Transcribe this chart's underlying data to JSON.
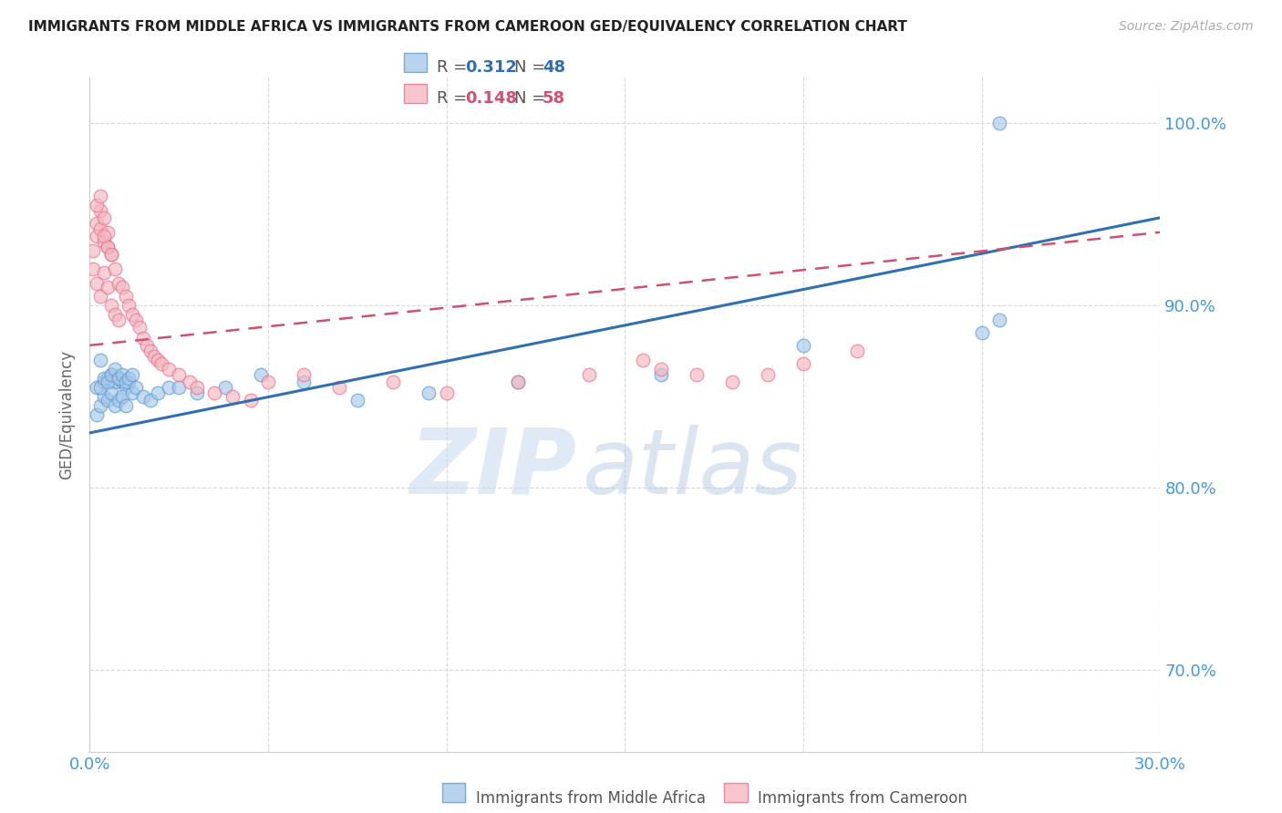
{
  "title": "IMMIGRANTS FROM MIDDLE AFRICA VS IMMIGRANTS FROM CAMEROON GED/EQUIVALENCY CORRELATION CHART",
  "source": "Source: ZipAtlas.com",
  "ylabel": "GED/Equivalency",
  "xlim": [
    0.0,
    0.3
  ],
  "ylim": [
    0.655,
    1.025
  ],
  "yticks": [
    0.7,
    0.8,
    0.9,
    1.0
  ],
  "ytick_labels": [
    "70.0%",
    "80.0%",
    "90.0%",
    "100.0%"
  ],
  "xticks": [
    0.0,
    0.05,
    0.1,
    0.15,
    0.2,
    0.25,
    0.3
  ],
  "series1_label": "Immigrants from Middle Africa",
  "series1_R": "0.312",
  "series1_N": "48",
  "series1_color": "#a8c8e8",
  "series1_edge_color": "#5b9bd5",
  "series1_line_color": "#3070b0",
  "series2_label": "Immigrants from Cameroon",
  "series2_R": "0.148",
  "series2_N": "58",
  "series2_color": "#f4b8c0",
  "series2_edge_color": "#e87090",
  "series2_line_color": "#d05070",
  "watermark_zip": "ZIP",
  "watermark_atlas": "atlas",
  "background_color": "#ffffff",
  "grid_color": "#d8d8d8",
  "axis_label_color": "#4499dd",
  "series1_x": [
    0.002,
    0.003,
    0.004,
    0.005,
    0.006,
    0.007,
    0.008,
    0.009,
    0.01,
    0.011,
    0.002,
    0.003,
    0.004,
    0.005,
    0.006,
    0.007,
    0.008,
    0.009,
    0.01,
    0.012,
    0.003,
    0.004,
    0.005,
    0.006,
    0.007,
    0.008,
    0.009,
    0.01,
    0.011,
    0.012,
    0.013,
    0.015,
    0.017,
    0.019,
    0.022,
    0.025,
    0.03,
    0.038,
    0.048,
    0.06,
    0.075,
    0.095,
    0.12,
    0.16,
    0.2,
    0.25,
    0.255,
    0.255
  ],
  "series1_y": [
    0.855,
    0.87,
    0.858,
    0.86,
    0.862,
    0.858,
    0.86,
    0.858,
    0.855,
    0.858,
    0.84,
    0.845,
    0.85,
    0.848,
    0.852,
    0.845,
    0.848,
    0.85,
    0.845,
    0.852,
    0.855,
    0.86,
    0.858,
    0.862,
    0.865,
    0.86,
    0.862,
    0.858,
    0.86,
    0.862,
    0.855,
    0.85,
    0.848,
    0.852,
    0.855,
    0.855,
    0.852,
    0.855,
    0.862,
    0.858,
    0.848,
    0.852,
    0.858,
    0.862,
    0.878,
    0.885,
    0.892,
    1.0
  ],
  "series2_x": [
    0.001,
    0.002,
    0.002,
    0.003,
    0.003,
    0.004,
    0.004,
    0.005,
    0.005,
    0.006,
    0.001,
    0.002,
    0.003,
    0.004,
    0.005,
    0.006,
    0.007,
    0.008,
    0.002,
    0.003,
    0.004,
    0.005,
    0.006,
    0.007,
    0.008,
    0.009,
    0.01,
    0.011,
    0.012,
    0.013,
    0.014,
    0.015,
    0.016,
    0.017,
    0.018,
    0.019,
    0.02,
    0.022,
    0.025,
    0.028,
    0.03,
    0.035,
    0.04,
    0.045,
    0.05,
    0.06,
    0.07,
    0.085,
    0.1,
    0.12,
    0.14,
    0.155,
    0.16,
    0.17,
    0.18,
    0.19,
    0.2,
    0.215
  ],
  "series2_y": [
    0.93,
    0.945,
    0.938,
    0.952,
    0.942,
    0.935,
    0.948,
    0.94,
    0.932,
    0.928,
    0.92,
    0.912,
    0.905,
    0.918,
    0.91,
    0.9,
    0.895,
    0.892,
    0.955,
    0.96,
    0.938,
    0.932,
    0.928,
    0.92,
    0.912,
    0.91,
    0.905,
    0.9,
    0.895,
    0.892,
    0.888,
    0.882,
    0.878,
    0.875,
    0.872,
    0.87,
    0.868,
    0.865,
    0.862,
    0.858,
    0.855,
    0.852,
    0.85,
    0.848,
    0.858,
    0.862,
    0.855,
    0.858,
    0.852,
    0.858,
    0.862,
    0.87,
    0.865,
    0.862,
    0.858,
    0.862,
    0.868,
    0.875
  ],
  "trend1_x0": 0.0,
  "trend1_y0": 0.83,
  "trend1_x1": 0.3,
  "trend1_y1": 0.948,
  "trend2_x0": 0.0,
  "trend2_y0": 0.878,
  "trend2_x1": 0.3,
  "trend2_y1": 0.94
}
